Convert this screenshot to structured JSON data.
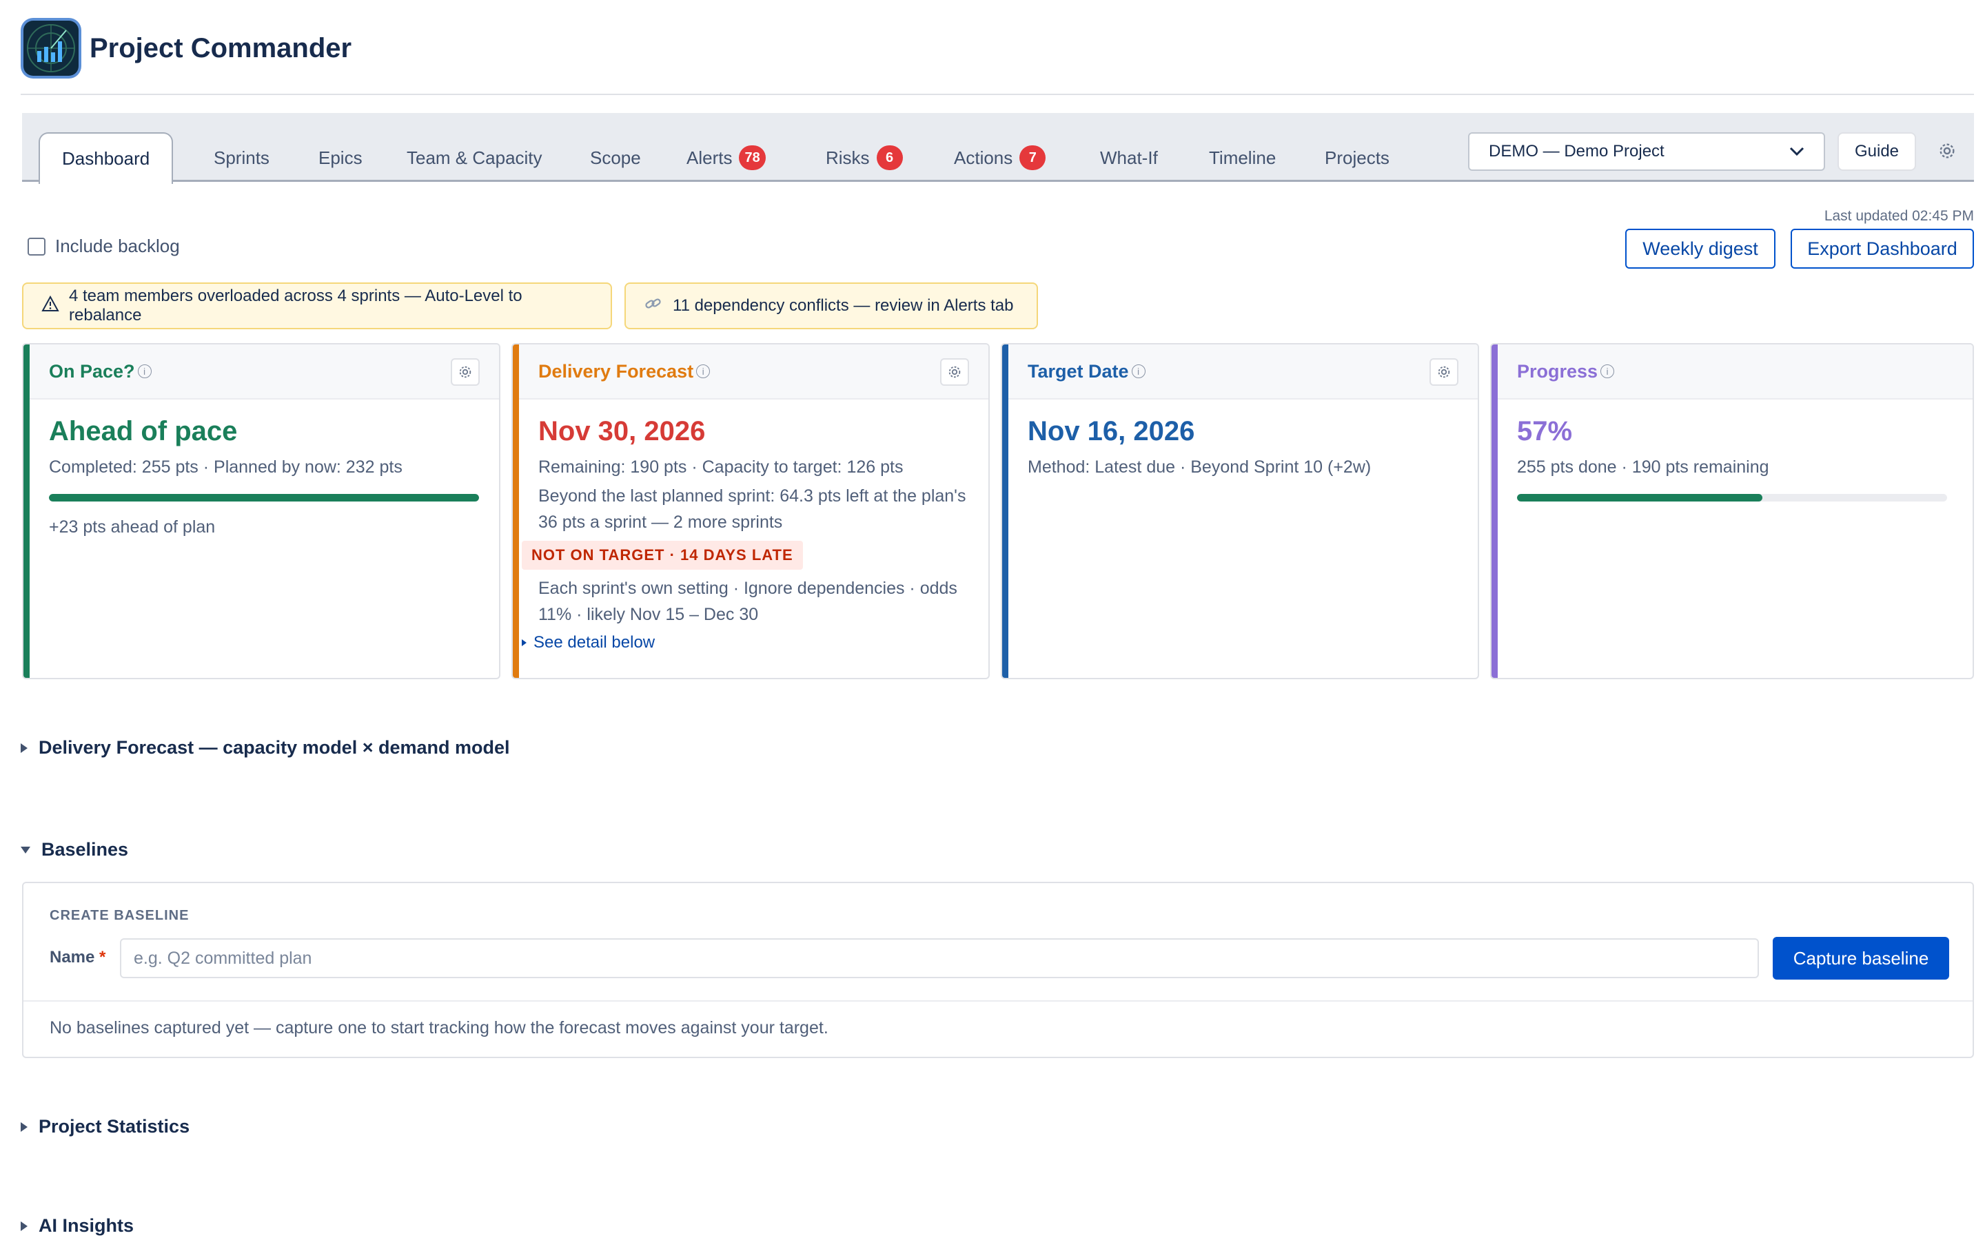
{
  "app": {
    "title": "Project Commander",
    "logo_icon": "radar-chart-icon"
  },
  "tabs": [
    {
      "label": "Dashboard",
      "active": true
    },
    {
      "label": "Sprints"
    },
    {
      "label": "Epics"
    },
    {
      "label": "Team & Capacity"
    },
    {
      "label": "Scope"
    },
    {
      "label": "Alerts",
      "badge": "78"
    },
    {
      "label": "Risks",
      "badge": "6"
    },
    {
      "label": "Actions",
      "badge": "7"
    },
    {
      "label": "What-If"
    },
    {
      "label": "Timeline"
    },
    {
      "label": "Projects"
    }
  ],
  "project_select": {
    "value": "DEMO — Demo Project"
  },
  "guide_label": "Guide",
  "toolbar": {
    "last_updated": "Last updated 02:45 PM",
    "include_backlog_label": "Include backlog",
    "weekly_digest_label": "Weekly digest",
    "export_label": "Export Dashboard"
  },
  "alerts": [
    {
      "icon": "warning-icon",
      "text": "4 team members overloaded across 4 sprints — Auto-Level to rebalance"
    },
    {
      "icon": "link-icon",
      "text": "11 dependency conflicts — review in Alerts tab"
    }
  ],
  "cards": {
    "on_pace": {
      "title": "On Pace?",
      "headline": "Ahead of pace",
      "sub": "Completed: 255 pts · Planned by now: 232 pts",
      "progress": 1.0,
      "note": "+23 pts ahead of plan",
      "color": "#1a7f5a"
    },
    "forecast": {
      "title": "Delivery Forecast",
      "headline": "Nov 30, 2026",
      "sub": "Remaining: 190 pts · Capacity to target: 126 pts",
      "sub2": "Beyond the last planned sprint: 64.3 pts left at the plan's 36 pts a sprint — 2 more sprints",
      "status": "NOT ON TARGET · 14 DAYS LATE",
      "detail": "Each sprint's own setting · Ignore dependencies · odds 11% · likely Nov 15 – Dec 30",
      "see_detail": "See detail below",
      "accent": "#e07b10",
      "headline_color": "#d63b36"
    },
    "target": {
      "title": "Target Date",
      "headline": "Nov 16, 2026",
      "sub": "Method: Latest due · Beyond Sprint 10 (+2w)",
      "color": "#1d5fa8"
    },
    "progress": {
      "title": "Progress",
      "headline": "57%",
      "sub": "255 pts done · 190 pts remaining",
      "progress": 0.57,
      "color": "#8b6fd6"
    }
  },
  "sections": {
    "forecast_model": "Delivery Forecast — capacity model × demand model",
    "baselines": "Baselines",
    "project_statistics": "Project Statistics",
    "ai_insights": "AI Insights"
  },
  "baseline_form": {
    "heading": "CREATE BASELINE",
    "name_label": "Name",
    "required_mark": "*",
    "name_placeholder": "e.g. Q2 committed plan",
    "capture_label": "Capture baseline",
    "empty_text": "No baselines captured yet — capture one to start tracking how the forecast moves against your target."
  }
}
